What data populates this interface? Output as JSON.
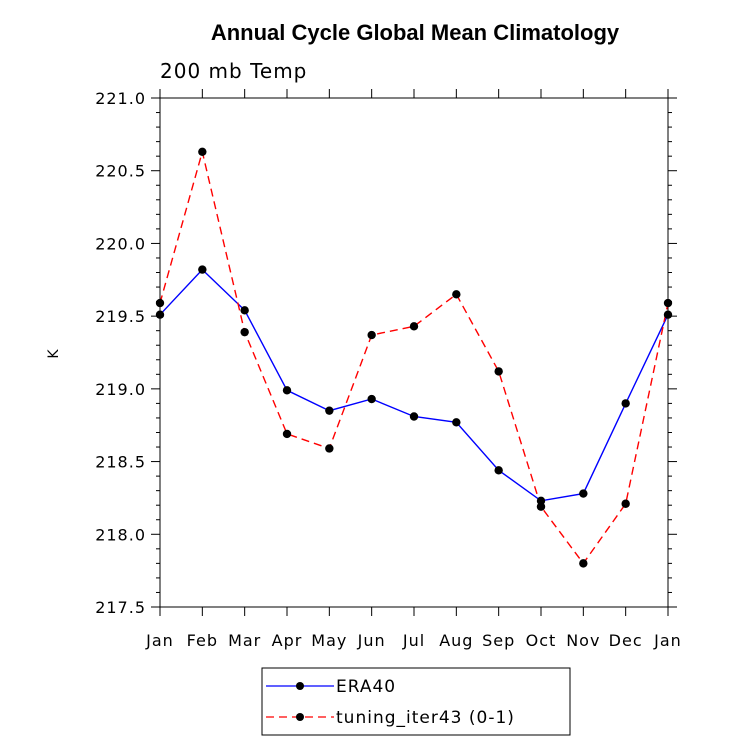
{
  "chart_data": {
    "type": "line",
    "title": "Annual Cycle Global Mean Climatology",
    "subtitle": "200 mb Temp",
    "xlabel": "",
    "ylabel": "K",
    "categories": [
      "Jan",
      "Feb",
      "Mar",
      "Apr",
      "May",
      "Jun",
      "Jul",
      "Aug",
      "Sep",
      "Oct",
      "Nov",
      "Dec",
      "Jan"
    ],
    "ylim": [
      217.5,
      221.0
    ],
    "yticks": [
      "217.5",
      "218.0",
      "218.5",
      "219.0",
      "219.5",
      "220.0",
      "220.5",
      "221.0"
    ],
    "legend_position": "bottom-center",
    "series": [
      {
        "name": "ERA40",
        "color": "#0000ff",
        "dash": "solid",
        "values": [
          219.51,
          219.82,
          219.54,
          218.99,
          218.85,
          218.93,
          218.81,
          218.77,
          218.44,
          218.23,
          218.28,
          218.9,
          219.51
        ]
      },
      {
        "name": "tuning_iter43 (0-1)",
        "color": "#ff0000",
        "dash": "dashed",
        "values": [
          219.59,
          220.63,
          219.39,
          218.69,
          218.59,
          219.37,
          219.43,
          219.65,
          219.12,
          218.19,
          217.8,
          218.21,
          219.59
        ]
      }
    ]
  }
}
